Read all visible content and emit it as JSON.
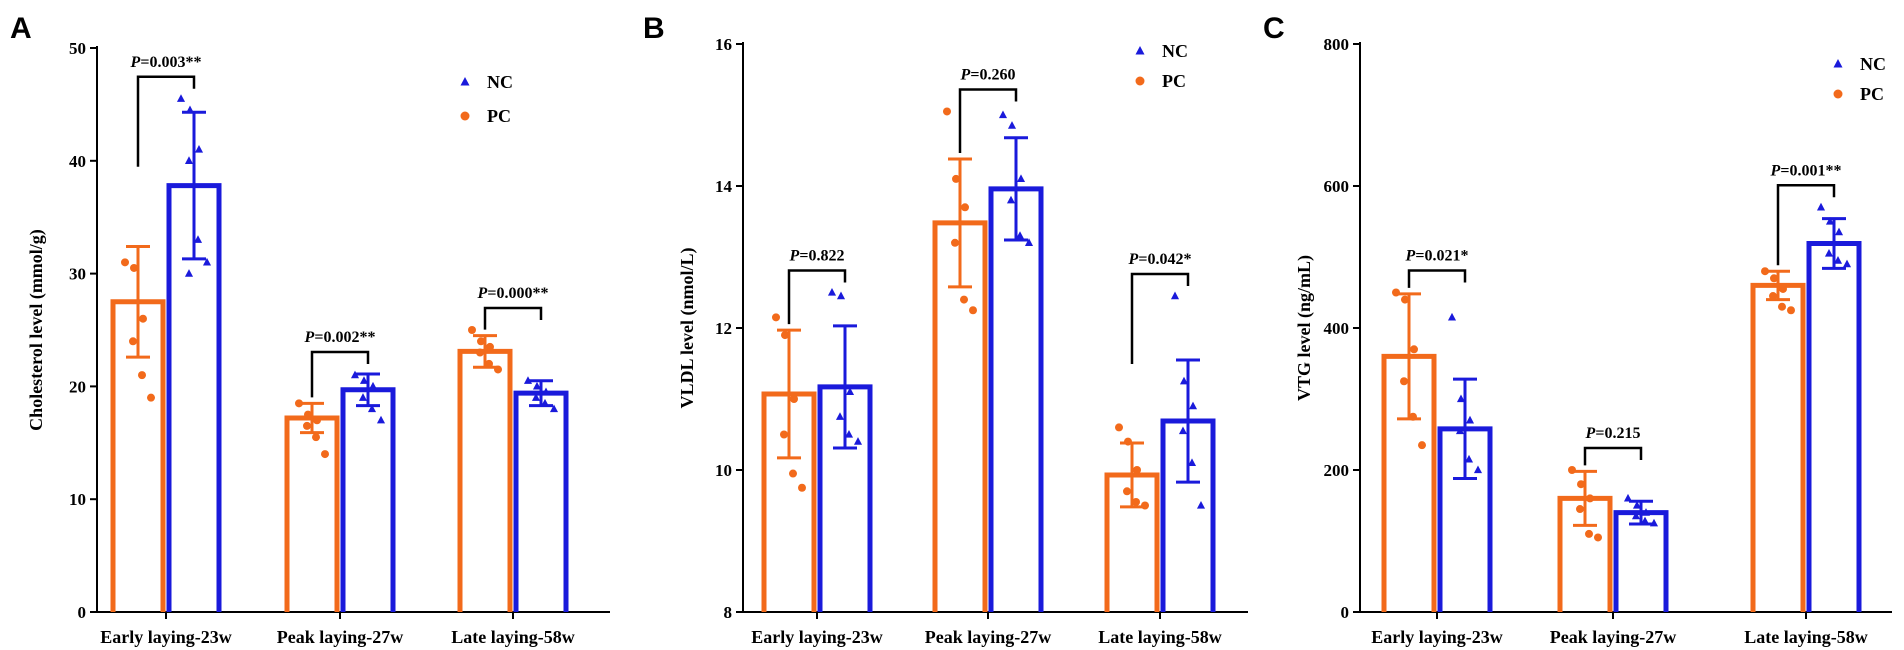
{
  "figure": {
    "colors": {
      "PC": "#f26a1b",
      "NC": "#1a1adb",
      "axis": "#000000"
    }
  },
  "chart_data": [
    {
      "panel": "A",
      "type": "bar",
      "title": "",
      "xlabel": "",
      "ylabel": "Cholesterol level (mmol/g)",
      "ylim": [
        0,
        50
      ],
      "yticks": [
        0,
        10,
        20,
        30,
        40,
        50
      ],
      "categories": [
        "Early laying-23w",
        "Peak laying-27w",
        "Late laying-58w"
      ],
      "legend": [
        "NC",
        "PC"
      ],
      "legend_position": "top-right",
      "series": [
        {
          "name": "PC",
          "values": [
            27.5,
            17.2,
            23.1
          ],
          "sd": [
            4.9,
            1.3,
            1.4
          ],
          "points": [
            [
              31,
              30.5,
              26,
              24,
              21,
              19
            ],
            [
              18.5,
              17.5,
              17,
              16.5,
              15.5,
              14
            ],
            [
              25,
              24,
              23.5,
              23,
              22,
              21.5
            ]
          ]
        },
        {
          "name": "NC",
          "values": [
            37.8,
            19.7,
            19.4
          ],
          "sd": [
            6.5,
            1.4,
            1.1
          ],
          "points": [
            [
              45.5,
              44.5,
              41,
              40,
              33,
              31,
              30
            ],
            [
              21,
              20.5,
              20,
              19,
              18,
              17
            ],
            [
              20.5,
              20,
              19.5,
              19,
              18.5,
              18
            ]
          ]
        }
      ],
      "annotations": [
        {
          "category": "Early laying-23w",
          "p": "P",
          "text": "=0.003**"
        },
        {
          "category": "Peak laying-27w",
          "p": "P",
          "text": "=0.002**"
        },
        {
          "category": "Late laying-58w",
          "p": "P",
          "text": "=0.000**"
        }
      ]
    },
    {
      "panel": "B",
      "type": "bar",
      "title": "",
      "xlabel": "",
      "ylabel": "VLDL level (nmol/L)",
      "ylim": [
        8,
        16
      ],
      "yticks": [
        8,
        10,
        12,
        14,
        16
      ],
      "categories": [
        "Early laying-23w",
        "Peak laying-27w",
        "Late laying-58w"
      ],
      "legend": [
        "NC",
        "PC"
      ],
      "legend_position": "top-right",
      "series": [
        {
          "name": "PC",
          "values": [
            11.07,
            13.48,
            9.93
          ],
          "sd": [
            0.9,
            0.9,
            0.45
          ],
          "points": [
            [
              12.15,
              11.9,
              11.0,
              10.5,
              9.95,
              9.75
            ],
            [
              15.05,
              14.1,
              13.7,
              13.2,
              12.4,
              12.25
            ],
            [
              10.6,
              10.4,
              10.0,
              9.7,
              9.55,
              9.5
            ]
          ]
        },
        {
          "name": "NC",
          "values": [
            11.17,
            13.96,
            10.69
          ],
          "sd": [
            0.86,
            0.72,
            0.86
          ],
          "points": [
            [
              12.5,
              12.45,
              11.1,
              10.75,
              10.5,
              10.4
            ],
            [
              15.0,
              14.85,
              14.1,
              13.8,
              13.3,
              13.2
            ],
            [
              12.45,
              11.25,
              10.9,
              10.55,
              10.1,
              9.5
            ]
          ]
        }
      ],
      "annotations": [
        {
          "category": "Early laying-23w",
          "p": "P",
          "text": "=0.822"
        },
        {
          "category": "Peak laying-27w",
          "p": "P",
          "text": "=0.260"
        },
        {
          "category": "Late laying-58w",
          "p": "P",
          "text": "=0.042*"
        }
      ]
    },
    {
      "panel": "C",
      "type": "bar",
      "title": "",
      "xlabel": "",
      "ylabel": "VTG level (ng/mL)",
      "ylim": [
        0,
        800
      ],
      "yticks": [
        0,
        200,
        400,
        600,
        800
      ],
      "categories": [
        "Early laying-23w",
        "Peak laying-27w",
        "Late laying-58w"
      ],
      "legend": [
        "NC",
        "PC"
      ],
      "legend_position": "top-right",
      "series": [
        {
          "name": "PC",
          "values": [
            360,
            160,
            460
          ],
          "sd": [
            88,
            38,
            20
          ],
          "points": [
            [
              450,
              440,
              370,
              325,
              275,
              235
            ],
            [
              200,
              180,
              160,
              145,
              110,
              105
            ],
            [
              480,
              470,
              455,
              445,
              430,
              425
            ]
          ]
        },
        {
          "name": "NC",
          "values": [
            258,
            140,
            519
          ],
          "sd": [
            70,
            16,
            35
          ],
          "points": [
            [
              415,
              300,
              270,
              255,
              215,
              200
            ],
            [
              160,
              150,
              140,
              135,
              128,
              125
            ],
            [
              570,
              550,
              535,
              505,
              495,
              490
            ]
          ]
        }
      ],
      "annotations": [
        {
          "category": "Early laying-23w",
          "p": "P",
          "text": "=0.021*"
        },
        {
          "category": "Peak laying-27w",
          "p": "P",
          "text": "=0.215"
        },
        {
          "category": "Late laying-58w",
          "p": "P",
          "text": "=0.001**"
        }
      ]
    }
  ]
}
